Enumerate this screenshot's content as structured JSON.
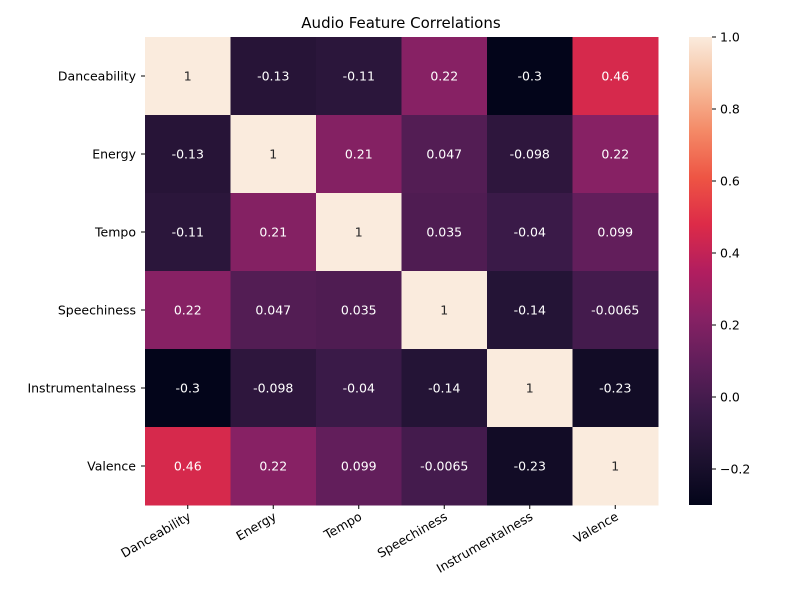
{
  "chart_data": {
    "type": "heatmap",
    "title": "Audio Feature Correlations",
    "row_labels": [
      "Danceability",
      "Energy",
      "Tempo",
      "Speechiness",
      "Instrumentalness",
      "Valence"
    ],
    "col_labels": [
      "Danceability",
      "Energy",
      "Tempo",
      "Speechiness",
      "Instrumentalness",
      "Valence"
    ],
    "values": [
      [
        1,
        -0.13,
        -0.11,
        0.22,
        -0.3,
        0.46
      ],
      [
        -0.13,
        1,
        0.21,
        0.047,
        -0.098,
        0.22
      ],
      [
        -0.11,
        0.21,
        1,
        0.035,
        -0.04,
        0.099
      ],
      [
        0.22,
        0.047,
        0.035,
        1,
        -0.14,
        -0.0065
      ],
      [
        -0.3,
        -0.098,
        -0.04,
        -0.14,
        1,
        -0.23
      ],
      [
        0.46,
        0.22,
        0.099,
        -0.0065,
        -0.23,
        1
      ]
    ],
    "annotations": [
      [
        "1",
        "-0.13",
        "-0.11",
        "0.22",
        "-0.3",
        "0.46"
      ],
      [
        "-0.13",
        "1",
        "0.21",
        "0.047",
        "-0.098",
        "0.22"
      ],
      [
        "-0.11",
        "0.21",
        "1",
        "0.035",
        "-0.04",
        "0.099"
      ],
      [
        "0.22",
        "0.047",
        "0.035",
        "1",
        "-0.14",
        "-0.0065"
      ],
      [
        "-0.3",
        "-0.098",
        "-0.04",
        "-0.14",
        "1",
        "-0.23"
      ],
      [
        "0.46",
        "0.22",
        "0.099",
        "-0.0065",
        "-0.23",
        "1"
      ]
    ],
    "vmin": -0.3,
    "vmax": 1.0,
    "colormap": "rocket",
    "colorbar_ticks": [
      "1.0",
      "0.8",
      "0.6",
      "0.4",
      "0.2",
      "0.0",
      "−0.2"
    ],
    "colorbar_tick_values": [
      1.0,
      0.8,
      0.6,
      0.4,
      0.2,
      0.0,
      -0.2
    ],
    "x_tick_rotation": "30-degree"
  }
}
